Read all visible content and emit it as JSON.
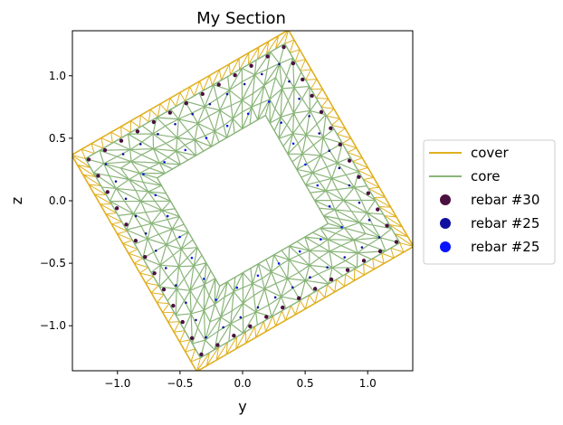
{
  "chart_data": {
    "type": "scatter",
    "title": "My Section",
    "xlabel": "y",
    "ylabel": "z",
    "xlim": [
      -1.36,
      1.36
    ],
    "ylim": [
      -1.36,
      1.36
    ],
    "xticks": [
      -1.0,
      -0.5,
      0.0,
      0.5,
      1.0
    ],
    "yticks": [
      -1.0,
      -0.5,
      0.0,
      0.5,
      1.0
    ],
    "xtick_labels": [
      "−1.0",
      "−0.5",
      "0.0",
      "0.5",
      "1.0"
    ],
    "ytick_labels": [
      "−1.0",
      "−0.5",
      "0.0",
      "0.5",
      "1.0"
    ],
    "grid": false,
    "legend_position": "right",
    "section": {
      "rotation_deg": 30,
      "outer_half_width": 1.0,
      "core_half_width": 0.92,
      "hole_half_width": 0.5,
      "outer_rebar_half_width": 0.9,
      "inner_rebar_half_width": 0.8,
      "hole_rebar_half_width": 0.58
    },
    "series": [
      {
        "name": "cover",
        "kind": "line",
        "color": "#e0b020"
      },
      {
        "name": "core",
        "kind": "line",
        "color": "#8ab57a"
      },
      {
        "name": "rebar #30",
        "kind": "marker",
        "color": "#4a1040",
        "count_per_side": 12
      },
      {
        "name": "rebar #25",
        "kind": "marker",
        "color": "#1010a0",
        "count_per_side": 10
      },
      {
        "name": "rebar #25",
        "kind": "marker",
        "color": "#0a14ff",
        "count_per_side": 6
      }
    ]
  }
}
